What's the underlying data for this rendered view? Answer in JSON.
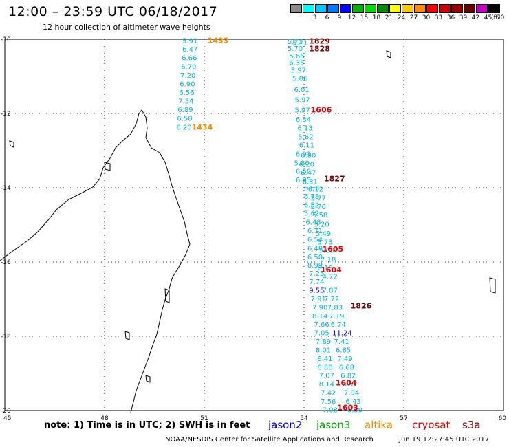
{
  "header": {
    "title": "12:00 – 23:59 UTC 06/18/2017",
    "subtitle": "12 hour collection of altimeter wave heights"
  },
  "legend": {
    "unit": "(ft)",
    "bins": [
      {
        "label": "",
        "color": "#8c8c8c"
      },
      {
        "label": "3",
        "color": "#00ffff"
      },
      {
        "label": "6",
        "color": "#00c8ff"
      },
      {
        "label": "9",
        "color": "#0078ff"
      },
      {
        "label": "12",
        "color": "#0000ff"
      },
      {
        "label": "15",
        "color": "#00b400"
      },
      {
        "label": "18",
        "color": "#00dc00"
      },
      {
        "label": "21",
        "color": "#008c00"
      },
      {
        "label": "24",
        "color": "#ffff00"
      },
      {
        "label": "27",
        "color": "#ffc800"
      },
      {
        "label": "30",
        "color": "#ff8c00"
      },
      {
        "label": "33",
        "color": "#ff0000"
      },
      {
        "label": "36",
        "color": "#c80000"
      },
      {
        "label": "39",
        "color": "#960000"
      },
      {
        "label": "42",
        "color": "#640000"
      },
      {
        "label": "45",
        "color": "#c000c0"
      },
      {
        "label": "70",
        "color": "#000000"
      }
    ]
  },
  "map": {
    "lon_ticks": [
      "45",
      "48",
      "51",
      "54",
      "57",
      "60"
    ],
    "lat_ticks": [
      "-10",
      "-12",
      "-14",
      "-16",
      "-18",
      "-20"
    ],
    "lon_range": [
      45,
      60
    ],
    "lat_range": [
      -10,
      -20
    ],
    "grid": "dotted"
  },
  "colors": {
    "swh_label": "#00b4e6",
    "swh_high": "#0000c8",
    "time_altika": "#ff8c00",
    "time_cryosat": "#e60000",
    "time_s3a": "#780000"
  },
  "tracks": [
    {
      "name": "altika-west",
      "swh_anchor": "end",
      "swh": [
        {
          "lon": 50.8,
          "lat": -10.03,
          "v": "5.91"
        },
        {
          "lon": 50.8,
          "lat": -10.26,
          "v": "6.47"
        },
        {
          "lon": 50.78,
          "lat": -10.49,
          "v": "6.66"
        },
        {
          "lon": 50.76,
          "lat": -10.73,
          "v": "6.70"
        },
        {
          "lon": 50.74,
          "lat": -10.96,
          "v": "7.20"
        },
        {
          "lon": 50.72,
          "lat": -11.19,
          "v": "6.90"
        },
        {
          "lon": 50.7,
          "lat": -11.43,
          "v": "6.56"
        },
        {
          "lon": 50.68,
          "lat": -11.66,
          "v": "7.54"
        },
        {
          "lon": 50.66,
          "lat": -11.89,
          "v": "6.89"
        },
        {
          "lon": 50.64,
          "lat": -12.12,
          "v": "6.58"
        },
        {
          "lon": 50.62,
          "lat": -12.36,
          "v": "6.20"
        }
      ],
      "times": [
        {
          "lon": 51.1,
          "lat": -10.03,
          "t": "1433",
          "color": "#ff8c00"
        },
        {
          "lon": 50.62,
          "lat": -12.36,
          "t": "1434",
          "color": "#ff8c00"
        }
      ]
    }
  ],
  "swh_points": [
    {
      "lon": 53.5,
      "lat": -10.06,
      "v": "5.71"
    },
    {
      "lon": 53.65,
      "lat": -10.08,
      "v": "5.71"
    },
    {
      "lon": 53.5,
      "lat": -10.24,
      "v": "5.70"
    },
    {
      "lon": 53.55,
      "lat": -10.44,
      "v": "5.66"
    },
    {
      "lon": 53.55,
      "lat": -10.62,
      "v": "6.35"
    },
    {
      "lon": 53.6,
      "lat": -10.82,
      "v": "5.97"
    },
    {
      "lon": 53.65,
      "lat": -11.05,
      "v": "5.86"
    },
    {
      "lon": 53.7,
      "lat": -11.35,
      "v": "6.01"
    },
    {
      "lon": 53.72,
      "lat": -11.62,
      "v": "5.97"
    },
    {
      "lon": 53.72,
      "lat": -11.9,
      "v": "5.97"
    },
    {
      "lon": 53.75,
      "lat": -12.15,
      "v": "6.34"
    },
    {
      "lon": 53.8,
      "lat": -12.38,
      "v": "6.13"
    },
    {
      "lon": 53.82,
      "lat": -12.62,
      "v": "5.62"
    },
    {
      "lon": 53.85,
      "lat": -12.84,
      "v": "6.11"
    },
    {
      "lon": 53.75,
      "lat": -13.08,
      "v": "6.91"
    },
    {
      "lon": 53.9,
      "lat": -13.12,
      "v": "6.90"
    },
    {
      "lon": 53.7,
      "lat": -13.32,
      "v": "5.80"
    },
    {
      "lon": 53.85,
      "lat": -13.36,
      "v": "6.20"
    },
    {
      "lon": 53.75,
      "lat": -13.55,
      "v": "6.50"
    },
    {
      "lon": 53.9,
      "lat": -13.58,
      "v": "6.47"
    },
    {
      "lon": 53.75,
      "lat": -13.78,
      "v": "6.95"
    },
    {
      "lon": 53.95,
      "lat": -13.82,
      "v": "6.31"
    },
    {
      "lon": 54.0,
      "lat": -14.0,
      "v": "6.53"
    },
    {
      "lon": 54.12,
      "lat": -14.03,
      "v": "6.12"
    },
    {
      "lon": 54.0,
      "lat": -14.22,
      "v": "6.78"
    },
    {
      "lon": 54.2,
      "lat": -14.27,
      "v": "5.77"
    },
    {
      "lon": 54.0,
      "lat": -14.45,
      "v": "6.52"
    },
    {
      "lon": 54.2,
      "lat": -14.5,
      "v": "5.76"
    },
    {
      "lon": 54.0,
      "lat": -14.68,
      "v": "5.62"
    },
    {
      "lon": 54.25,
      "lat": -14.72,
      "v": "5.58"
    },
    {
      "lon": 54.05,
      "lat": -14.92,
      "v": "6.48"
    },
    {
      "lon": 54.3,
      "lat": -14.97,
      "v": "5.20"
    },
    {
      "lon": 54.1,
      "lat": -15.15,
      "v": "6.71"
    },
    {
      "lon": 54.35,
      "lat": -15.22,
      "v": "5.49"
    },
    {
      "lon": 54.1,
      "lat": -15.38,
      "v": "6.54"
    },
    {
      "lon": 54.4,
      "lat": -15.45,
      "v": "5.73"
    },
    {
      "lon": 54.1,
      "lat": -15.62,
      "v": "6.48"
    },
    {
      "lon": 54.45,
      "lat": -15.68,
      "v": "5.65"
    },
    {
      "lon": 54.1,
      "lat": -15.85,
      "v": "6.50"
    },
    {
      "lon": 54.5,
      "lat": -15.92,
      "v": "7.18"
    },
    {
      "lon": 54.1,
      "lat": -16.07,
      "v": "8.99"
    },
    {
      "lon": 54.4,
      "lat": -16.15,
      "v": "6.16"
    },
    {
      "lon": 54.15,
      "lat": -16.3,
      "v": "7.25"
    },
    {
      "lon": 54.55,
      "lat": -16.38,
      "v": "4.72"
    },
    {
      "lon": 54.15,
      "lat": -16.52,
      "v": "7.74"
    },
    {
      "lon": 54.15,
      "lat": -16.75,
      "v": "9.55",
      "hi": true
    },
    {
      "lon": 54.55,
      "lat": -16.75,
      "v": "7.87"
    },
    {
      "lon": 54.2,
      "lat": -16.98,
      "v": "7.91"
    },
    {
      "lon": 54.6,
      "lat": -16.98,
      "v": "7.72"
    },
    {
      "lon": 54.25,
      "lat": -17.21,
      "v": "7.90"
    },
    {
      "lon": 54.7,
      "lat": -17.21,
      "v": "7.83"
    },
    {
      "lon": 54.25,
      "lat": -17.44,
      "v": "8.14"
    },
    {
      "lon": 54.75,
      "lat": -17.44,
      "v": "7.19"
    },
    {
      "lon": 54.3,
      "lat": -17.67,
      "v": "7.66"
    },
    {
      "lon": 54.8,
      "lat": -17.67,
      "v": "6.74"
    },
    {
      "lon": 54.3,
      "lat": -17.9,
      "v": "7.05"
    },
    {
      "lon": 54.85,
      "lat": -17.9,
      "v": "11.24",
      "hi": true
    },
    {
      "lon": 54.35,
      "lat": -18.13,
      "v": "7.89"
    },
    {
      "lon": 54.9,
      "lat": -18.13,
      "v": "7.41"
    },
    {
      "lon": 54.35,
      "lat": -18.36,
      "v": "8.01"
    },
    {
      "lon": 54.95,
      "lat": -18.36,
      "v": "6.85"
    },
    {
      "lon": 54.4,
      "lat": -18.59,
      "v": "8.41"
    },
    {
      "lon": 55.0,
      "lat": -18.59,
      "v": "7.49"
    },
    {
      "lon": 54.4,
      "lat": -18.82,
      "v": "6.80"
    },
    {
      "lon": 55.05,
      "lat": -18.82,
      "v": "6.68"
    },
    {
      "lon": 54.45,
      "lat": -19.05,
      "v": "7.07"
    },
    {
      "lon": 55.1,
      "lat": -19.05,
      "v": "6.82"
    },
    {
      "lon": 54.45,
      "lat": -19.28,
      "v": "8.14"
    },
    {
      "lon": 55.15,
      "lat": -19.28,
      "v": "6.57"
    },
    {
      "lon": 54.5,
      "lat": -19.51,
      "v": "7.42"
    },
    {
      "lon": 55.2,
      "lat": -19.51,
      "v": "7.94"
    },
    {
      "lon": 54.5,
      "lat": -19.74,
      "v": "7.56"
    },
    {
      "lon": 55.25,
      "lat": -19.74,
      "v": "6.43"
    },
    {
      "lon": 54.55,
      "lat": -19.97,
      "v": "7.08"
    },
    {
      "lon": 55.3,
      "lat": -19.97,
      "v": "6.59"
    }
  ],
  "time_labels": [
    {
      "lon": 54.15,
      "lat": -10.05,
      "t": "1829",
      "color": "#780000"
    },
    {
      "lon": 54.15,
      "lat": -10.25,
      "t": "1828",
      "color": "#780000"
    },
    {
      "lon": 54.2,
      "lat": -11.9,
      "t": "1606",
      "color": "#e60000"
    },
    {
      "lon": 54.6,
      "lat": -13.75,
      "t": "1827",
      "color": "#780000"
    },
    {
      "lon": 54.55,
      "lat": -15.65,
      "t": "1605",
      "color": "#e60000"
    },
    {
      "lon": 54.5,
      "lat": -16.2,
      "t": "1604",
      "color": "#e60000"
    },
    {
      "lon": 55.4,
      "lat": -17.18,
      "t": "1826",
      "color": "#780000"
    },
    {
      "lon": 54.95,
      "lat": -19.25,
      "t": "1604",
      "color": "#e60000"
    },
    {
      "lon": 55.0,
      "lat": -19.92,
      "t": "1603",
      "color": "#e60000"
    }
  ],
  "note": "note:  1) Time is in UTC;  2) SWH is in feet",
  "missions": [
    {
      "label": "jason2",
      "color": "#0000e6"
    },
    {
      "label": "jason3",
      "color": "#00a000"
    },
    {
      "label": "altika",
      "color": "#ff8c00"
    },
    {
      "label": "cryosat",
      "color": "#e60000"
    },
    {
      "label": "s3a",
      "color": "#780000"
    }
  ],
  "footer": {
    "credit": "NOAA/NESDIS Center for Satellite Applications and Research",
    "timestamp": "Jun 19 12:27:45 UTC 2017"
  }
}
